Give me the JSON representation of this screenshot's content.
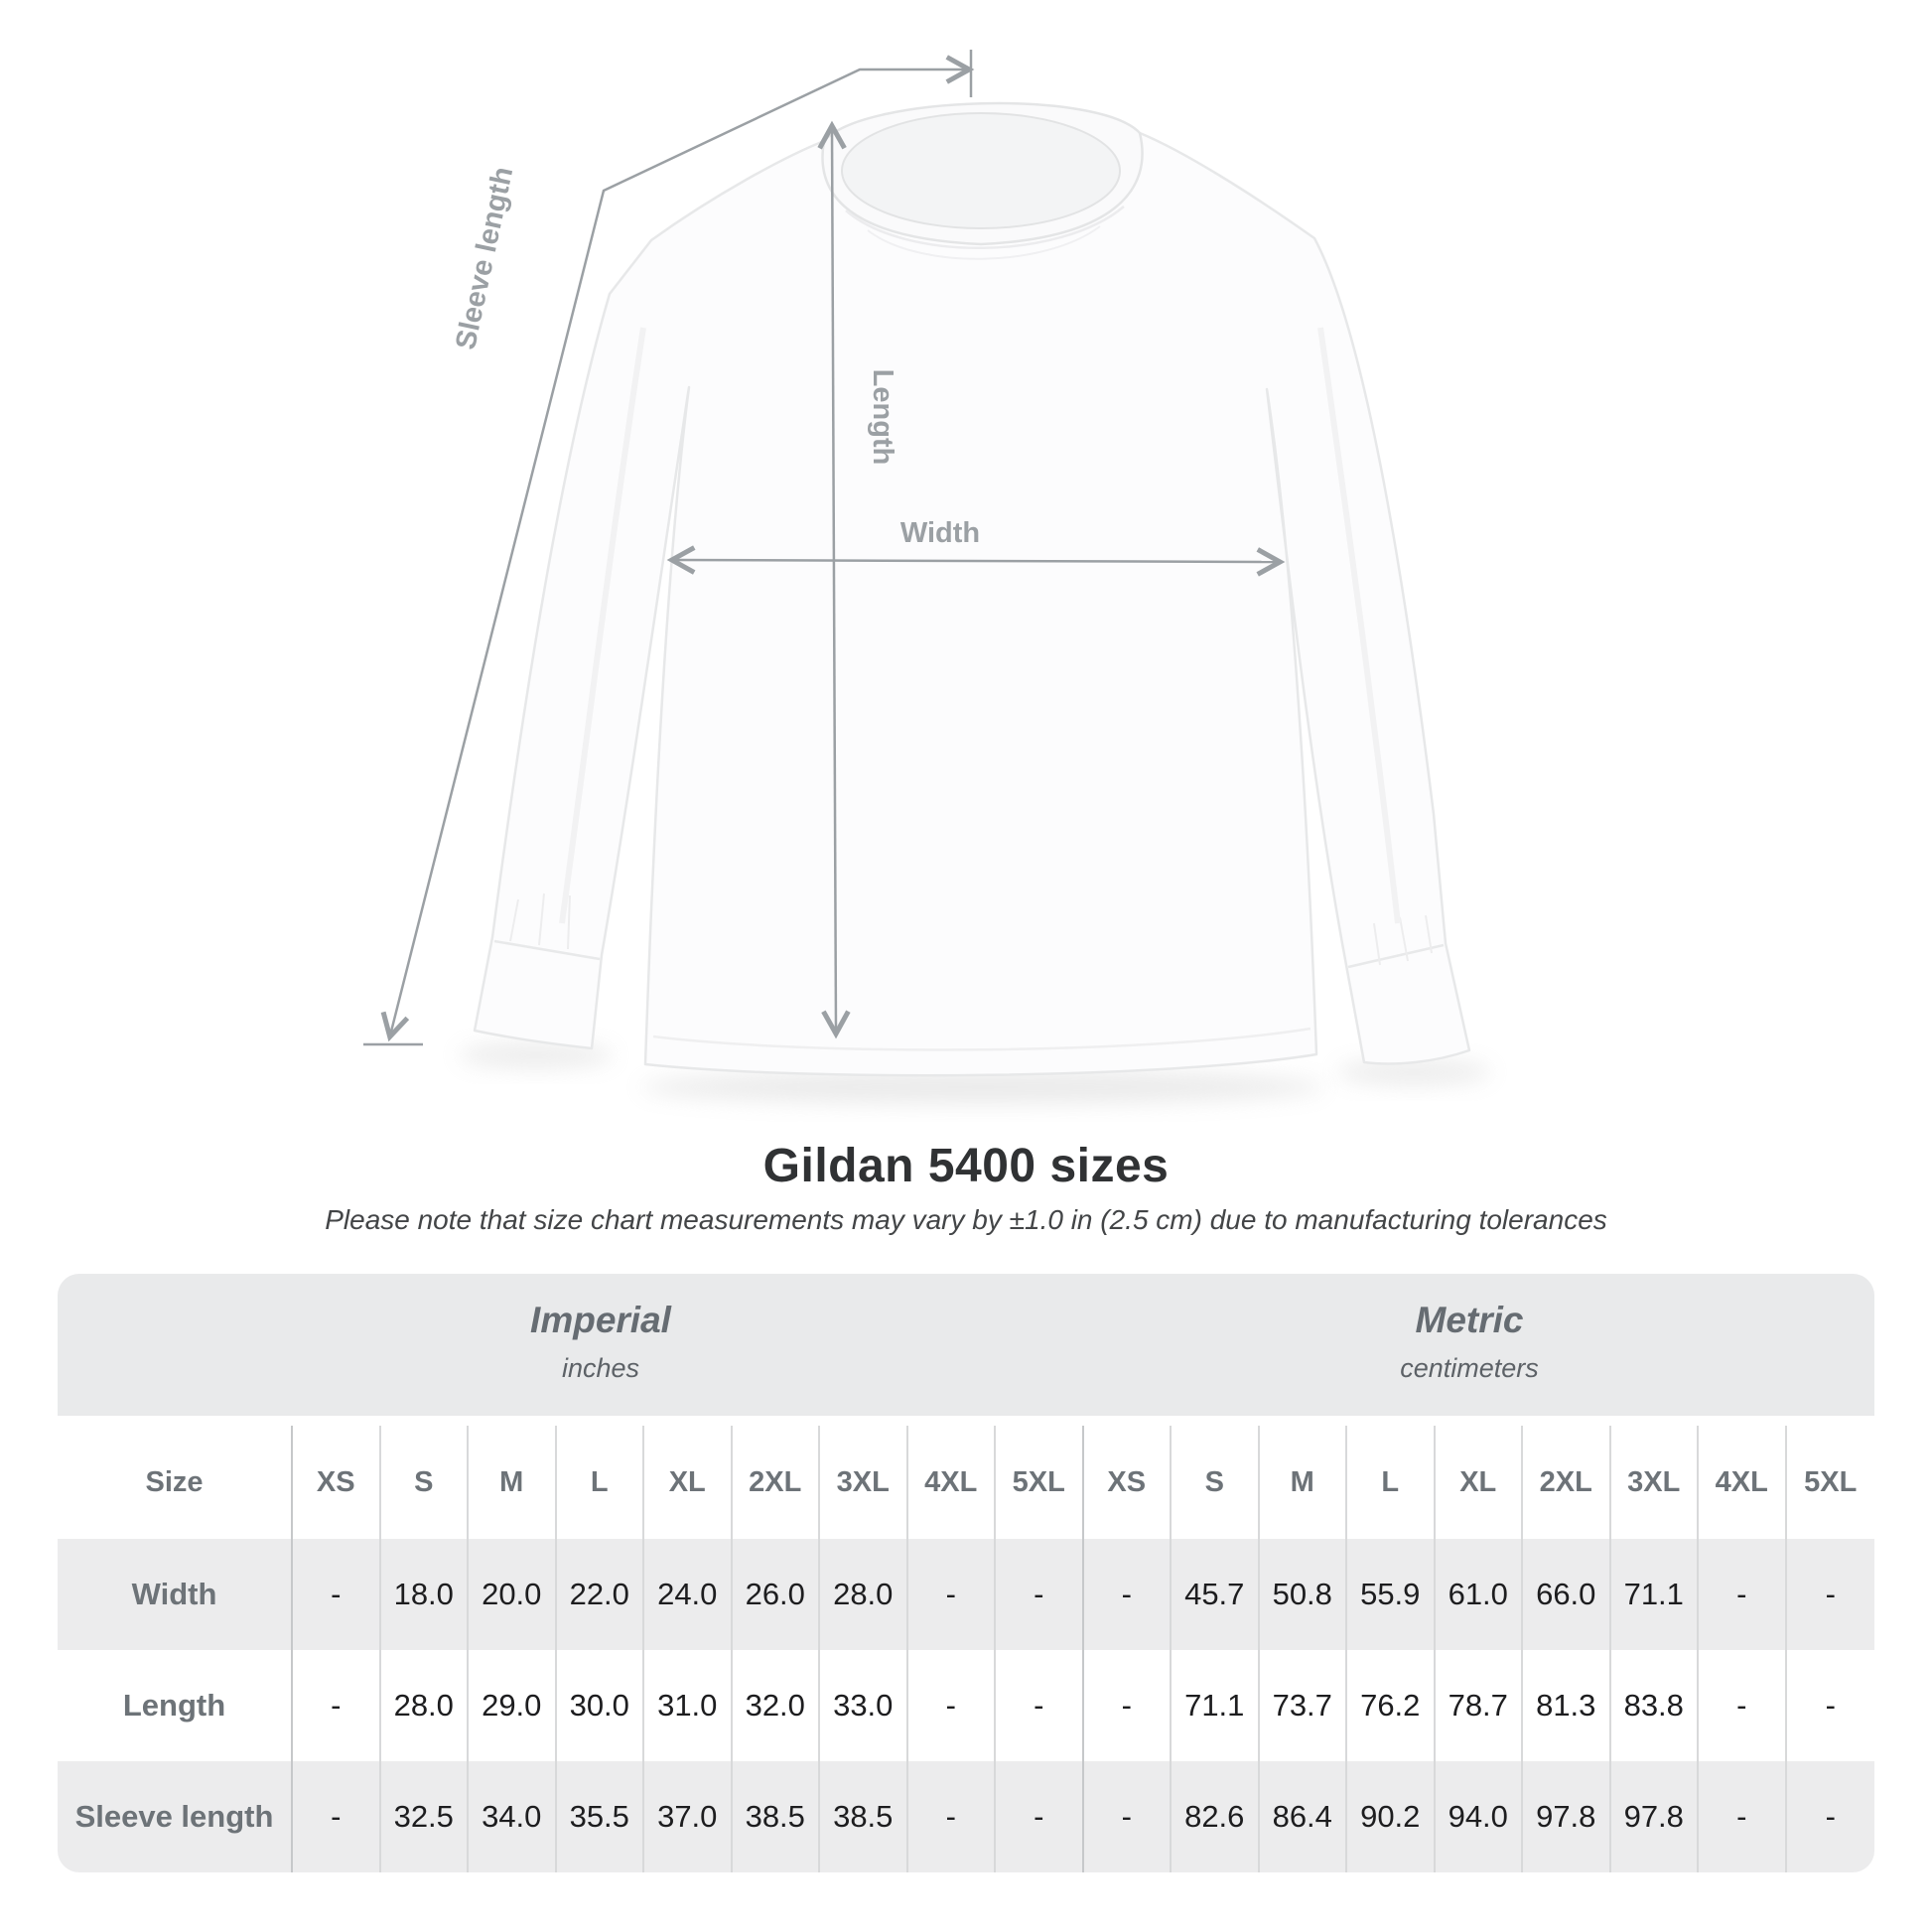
{
  "title": "Gildan 5400 sizes",
  "subtitle": "Please note that size chart measurements may vary by ±1.0 in (2.5 cm) due to manufacturing tolerances",
  "diagram": {
    "sleeve_length_label": "Sleeve length",
    "length_label": "Length",
    "width_label": "Width"
  },
  "table": {
    "size_header": "Size",
    "sizes": [
      "XS",
      "S",
      "M",
      "L",
      "XL",
      "2XL",
      "3XL",
      "4XL",
      "5XL"
    ],
    "unit_groups": [
      {
        "name": "Imperial",
        "unit": "inches"
      },
      {
        "name": "Metric",
        "unit": "centimeters"
      }
    ],
    "rows": [
      {
        "label": "Width",
        "imperial": [
          "-",
          "18.0",
          "20.0",
          "22.0",
          "24.0",
          "26.0",
          "28.0",
          "-",
          "-"
        ],
        "metric": [
          "-",
          "45.7",
          "50.8",
          "55.9",
          "61.0",
          "66.0",
          "71.1",
          "-",
          "-"
        ]
      },
      {
        "label": "Length",
        "imperial": [
          "-",
          "28.0",
          "29.0",
          "30.0",
          "31.0",
          "32.0",
          "33.0",
          "-",
          "-"
        ],
        "metric": [
          "-",
          "71.1",
          "73.7",
          "76.2",
          "78.7",
          "81.3",
          "83.8",
          "-",
          "-"
        ]
      },
      {
        "label": "Sleeve length",
        "imperial": [
          "-",
          "32.5",
          "34.0",
          "35.5",
          "37.0",
          "38.5",
          "38.5",
          "-",
          "-"
        ],
        "metric": [
          "-",
          "82.6",
          "86.4",
          "90.2",
          "94.0",
          "97.8",
          "97.8",
          "-",
          "-"
        ]
      }
    ]
  },
  "chart_data": {
    "type": "table",
    "title": "Gildan 5400 sizes",
    "note": "Measurements may vary by ±1.0 in (2.5 cm) due to manufacturing tolerances",
    "columns": [
      "XS",
      "S",
      "M",
      "L",
      "XL",
      "2XL",
      "3XL",
      "4XL",
      "5XL"
    ],
    "unit_systems": [
      {
        "system": "Imperial",
        "unit": "inches",
        "series": [
          {
            "name": "Width",
            "values": [
              null,
              18.0,
              20.0,
              22.0,
              24.0,
              26.0,
              28.0,
              null,
              null
            ]
          },
          {
            "name": "Length",
            "values": [
              null,
              28.0,
              29.0,
              30.0,
              31.0,
              32.0,
              33.0,
              null,
              null
            ]
          },
          {
            "name": "Sleeve length",
            "values": [
              null,
              32.5,
              34.0,
              35.5,
              37.0,
              38.5,
              38.5,
              null,
              null
            ]
          }
        ]
      },
      {
        "system": "Metric",
        "unit": "centimeters",
        "series": [
          {
            "name": "Width",
            "values": [
              null,
              45.7,
              50.8,
              55.9,
              61.0,
              66.0,
              71.1,
              null,
              null
            ]
          },
          {
            "name": "Length",
            "values": [
              null,
              71.1,
              73.7,
              76.2,
              78.7,
              81.3,
              83.8,
              null,
              null
            ]
          },
          {
            "name": "Sleeve length",
            "values": [
              null,
              82.6,
              86.4,
              90.2,
              94.0,
              97.8,
              97.8,
              null,
              null
            ]
          }
        ]
      }
    ]
  },
  "colors": {
    "annotation_gray": "#9ba0a4",
    "band_gray": "#e9eaeb",
    "stripe_gray": "#ececed",
    "separator_gray": "#d8d9da",
    "title_color": "#303234",
    "value_color": "#1d1d1f"
  }
}
